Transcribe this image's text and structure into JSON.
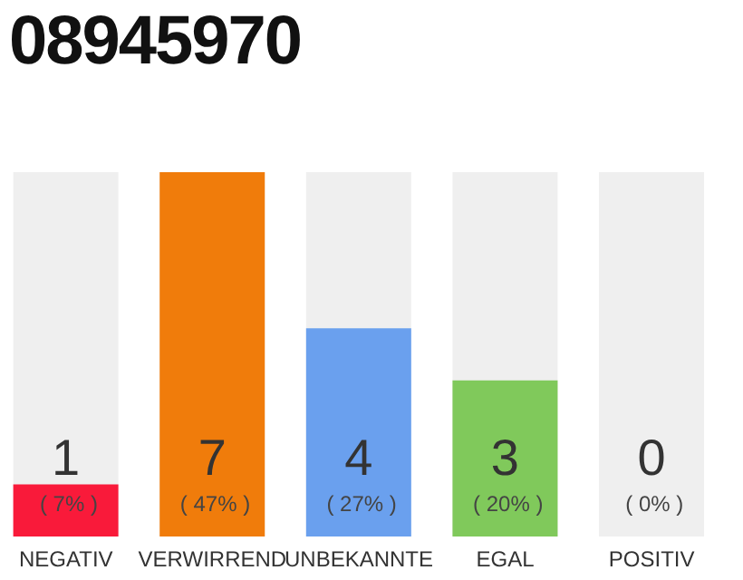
{
  "chart_data": {
    "type": "bar",
    "title": "08945970",
    "categories": [
      "NEGATIV",
      "VERWIRREND",
      "UNBEKANNTE",
      "EGAL",
      "POSITIV"
    ],
    "values": [
      1,
      7,
      4,
      3,
      0
    ],
    "colors": [
      "#f91a3a",
      "#f07c0b",
      "#6aa0ee",
      "#80c95b",
      "#efefef"
    ],
    "value_labels": [
      "1 ( 7% )",
      "7 ( 47% )",
      "4 ( 27% )",
      "3 ( 20% )",
      "0 ( 0% )"
    ]
  }
}
